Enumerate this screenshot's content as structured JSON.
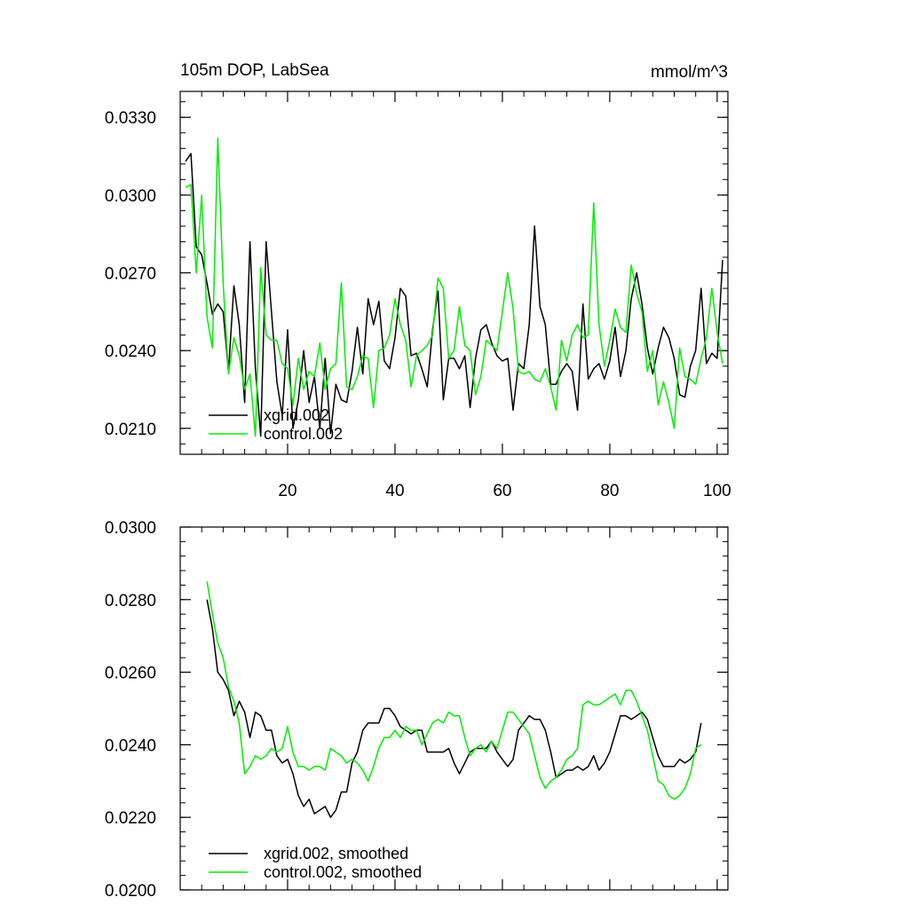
{
  "chart_data": [
    {
      "type": "line",
      "title_left": "105m DOP, LabSea",
      "title_right": "mmol/m^3",
      "xlabel": "",
      "ylabel": "",
      "xlim": [
        0,
        102
      ],
      "ylim": [
        0.02,
        0.034
      ],
      "x_ticks": [
        20,
        40,
        60,
        80,
        100
      ],
      "y_ticks": [
        0.021,
        0.024,
        0.027,
        0.03,
        0.033
      ],
      "y_tick_labels": [
        "0.0210",
        "0.0240",
        "0.0270",
        "0.0300",
        "0.0330"
      ],
      "x_tick_labels": [
        "20",
        "40",
        "60",
        "80",
        "100"
      ],
      "legend_position": "bottom-left",
      "x": [
        1,
        2,
        3,
        4,
        5,
        6,
        7,
        8,
        9,
        10,
        11,
        12,
        13,
        14,
        15,
        16,
        17,
        18,
        19,
        20,
        21,
        22,
        23,
        24,
        25,
        26,
        27,
        28,
        29,
        30,
        31,
        32,
        33,
        34,
        35,
        36,
        37,
        38,
        39,
        40,
        41,
        42,
        43,
        44,
        45,
        46,
        47,
        48,
        49,
        50,
        51,
        52,
        53,
        54,
        55,
        56,
        57,
        58,
        59,
        60,
        61,
        62,
        63,
        64,
        65,
        66,
        67,
        68,
        69,
        70,
        71,
        72,
        73,
        74,
        75,
        76,
        77,
        78,
        79,
        80,
        81,
        82,
        83,
        84,
        85,
        86,
        87,
        88,
        89,
        90,
        91,
        92,
        93,
        94,
        95,
        96,
        97,
        98,
        99,
        100,
        101
      ],
      "series": [
        {
          "name": "xgrid.002",
          "color": "#000000",
          "values": [
            0.0313,
            0.0316,
            0.028,
            0.0277,
            0.0266,
            0.0254,
            0.0258,
            0.0255,
            0.0232,
            0.0265,
            0.025,
            0.022,
            0.0282,
            0.0233,
            0.0207,
            0.0282,
            0.0255,
            0.0228,
            0.0215,
            0.0248,
            0.021,
            0.0221,
            0.024,
            0.022,
            0.023,
            0.021,
            0.0237,
            0.0208,
            0.0227,
            0.0221,
            0.022,
            0.0232,
            0.0249,
            0.0231,
            0.026,
            0.025,
            0.0259,
            0.0236,
            0.0233,
            0.0245,
            0.0264,
            0.0261,
            0.0238,
            0.0239,
            0.0233,
            0.0226,
            0.0248,
            0.0263,
            0.0221,
            0.0237,
            0.0237,
            0.0233,
            0.0238,
            0.0218,
            0.0237,
            0.0248,
            0.025,
            0.0243,
            0.0238,
            0.0236,
            0.0237,
            0.0217,
            0.0235,
            0.0233,
            0.025,
            0.0288,
            0.0257,
            0.025,
            0.0227,
            0.0227,
            0.0232,
            0.0235,
            0.0232,
            0.0217,
            0.0258,
            0.0229,
            0.0233,
            0.0235,
            0.0229,
            0.0236,
            0.0249,
            0.023,
            0.024,
            0.026,
            0.027,
            0.0258,
            0.0241,
            0.0231,
            0.0241,
            0.0249,
            0.0245,
            0.0237,
            0.0223,
            0.0222,
            0.0234,
            0.024,
            0.0264,
            0.0235,
            0.0239,
            0.0237,
            0.0275
          ]
        },
        {
          "name": "control.002",
          "color": "#00ee00",
          "values": [
            0.0303,
            0.0304,
            0.027,
            0.03,
            0.0253,
            0.0241,
            0.0322,
            0.0266,
            0.0231,
            0.0245,
            0.0238,
            0.0225,
            0.0231,
            0.0207,
            0.0272,
            0.0246,
            0.0244,
            0.0244,
            0.0235,
            0.0233,
            0.0219,
            0.0237,
            0.0225,
            0.0232,
            0.023,
            0.0243,
            0.0225,
            0.0233,
            0.0235,
            0.0266,
            0.0226,
            0.0225,
            0.023,
            0.0238,
            0.0237,
            0.0218,
            0.024,
            0.0241,
            0.0246,
            0.026,
            0.025,
            0.0244,
            0.0226,
            0.0238,
            0.024,
            0.0242,
            0.0246,
            0.0268,
            0.0264,
            0.0237,
            0.024,
            0.0257,
            0.0242,
            0.024,
            0.0223,
            0.023,
            0.0244,
            0.0242,
            0.024,
            0.0255,
            0.027,
            0.0256,
            0.0232,
            0.0231,
            0.0232,
            0.0229,
            0.0228,
            0.0233,
            0.0226,
            0.0217,
            0.0244,
            0.0236,
            0.0246,
            0.025,
            0.0245,
            0.0246,
            0.0297,
            0.025,
            0.0234,
            0.0244,
            0.0256,
            0.0249,
            0.0247,
            0.0273,
            0.0262,
            0.0255,
            0.0232,
            0.024,
            0.0219,
            0.0228,
            0.022,
            0.021,
            0.0241,
            0.023,
            0.0229,
            0.0227,
            0.0237,
            0.0245,
            0.0264,
            0.0247,
            0.0235
          ]
        }
      ]
    },
    {
      "type": "line",
      "title_left": "",
      "title_right": "",
      "xlabel": "",
      "ylabel": "",
      "xlim": [
        0,
        102
      ],
      "ylim": [
        0.02,
        0.03
      ],
      "x_ticks": [
        20,
        40,
        60,
        80,
        100
      ],
      "y_ticks": [
        0.02,
        0.022,
        0.024,
        0.026,
        0.028,
        0.03
      ],
      "y_tick_labels": [
        "0.0200",
        "0.0220",
        "0.0240",
        "0.0260",
        "0.0280",
        "0.0300"
      ],
      "legend_position": "bottom-left",
      "x": [
        5,
        6,
        7,
        8,
        9,
        10,
        11,
        12,
        13,
        14,
        15,
        16,
        17,
        18,
        19,
        20,
        21,
        22,
        23,
        24,
        25,
        26,
        27,
        28,
        29,
        30,
        31,
        32,
        33,
        34,
        35,
        36,
        37,
        38,
        39,
        40,
        41,
        42,
        43,
        44,
        45,
        46,
        47,
        48,
        49,
        50,
        51,
        52,
        53,
        54,
        55,
        56,
        57,
        58,
        59,
        60,
        61,
        62,
        63,
        64,
        65,
        66,
        67,
        68,
        69,
        70,
        71,
        72,
        73,
        74,
        75,
        76,
        77,
        78,
        79,
        80,
        81,
        82,
        83,
        84,
        85,
        86,
        87,
        88,
        89,
        90,
        91,
        92,
        93,
        94,
        95,
        96,
        97
      ],
      "series": [
        {
          "name": "xgrid.002, smoothed",
          "color": "#000000",
          "values": [
            0.028,
            0.0272,
            0.026,
            0.0258,
            0.0255,
            0.0248,
            0.0252,
            0.0249,
            0.0242,
            0.0249,
            0.0248,
            0.0244,
            0.0244,
            0.0237,
            0.0235,
            0.0236,
            0.0232,
            0.0226,
            0.0223,
            0.0225,
            0.0221,
            0.0222,
            0.0223,
            0.022,
            0.0222,
            0.0227,
            0.0227,
            0.0235,
            0.0238,
            0.0244,
            0.0246,
            0.0246,
            0.0246,
            0.025,
            0.025,
            0.0248,
            0.0245,
            0.0244,
            0.0243,
            0.0244,
            0.0244,
            0.0238,
            0.0238,
            0.0238,
            0.0238,
            0.0239,
            0.0235,
            0.0232,
            0.0235,
            0.0238,
            0.0239,
            0.0239,
            0.0239,
            0.0241,
            0.0238,
            0.0236,
            0.0234,
            0.0236,
            0.0244,
            0.0246,
            0.0248,
            0.0247,
            0.0247,
            0.0244,
            0.0238,
            0.0231,
            0.0232,
            0.0233,
            0.0233,
            0.0234,
            0.0233,
            0.0234,
            0.0237,
            0.0233,
            0.0235,
            0.0238,
            0.0243,
            0.0248,
            0.0248,
            0.0247,
            0.0248,
            0.0249,
            0.0247,
            0.0242,
            0.0237,
            0.0234,
            0.0234,
            0.0234,
            0.0236,
            0.0235,
            0.0236,
            0.0238,
            0.0246
          ]
        },
        {
          "name": "control.002, smoothed",
          "color": "#00ee00",
          "values": [
            0.0285,
            0.0276,
            0.0268,
            0.0264,
            0.0256,
            0.0252,
            0.0246,
            0.0232,
            0.0234,
            0.0237,
            0.0236,
            0.0237,
            0.0239,
            0.0238,
            0.0239,
            0.0245,
            0.0238,
            0.0234,
            0.0234,
            0.0233,
            0.0234,
            0.0234,
            0.0233,
            0.0239,
            0.0238,
            0.0237,
            0.0235,
            0.0236,
            0.0235,
            0.0233,
            0.023,
            0.0234,
            0.0239,
            0.0242,
            0.0242,
            0.0244,
            0.0242,
            0.0245,
            0.0244,
            0.0244,
            0.024,
            0.0243,
            0.0246,
            0.0247,
            0.0246,
            0.0249,
            0.0248,
            0.0248,
            0.0242,
            0.0237,
            0.0239,
            0.024,
            0.0238,
            0.0241,
            0.0239,
            0.0244,
            0.0249,
            0.0249,
            0.0247,
            0.0245,
            0.0243,
            0.0237,
            0.0231,
            0.0228,
            0.023,
            0.0231,
            0.0233,
            0.0236,
            0.0237,
            0.0239,
            0.0251,
            0.0252,
            0.0251,
            0.0251,
            0.0252,
            0.0253,
            0.0254,
            0.0251,
            0.0255,
            0.0255,
            0.0252,
            0.0248,
            0.0244,
            0.0237,
            0.023,
            0.0229,
            0.0226,
            0.0225,
            0.0226,
            0.0228,
            0.0232,
            0.0239,
            0.024
          ]
        }
      ]
    }
  ]
}
